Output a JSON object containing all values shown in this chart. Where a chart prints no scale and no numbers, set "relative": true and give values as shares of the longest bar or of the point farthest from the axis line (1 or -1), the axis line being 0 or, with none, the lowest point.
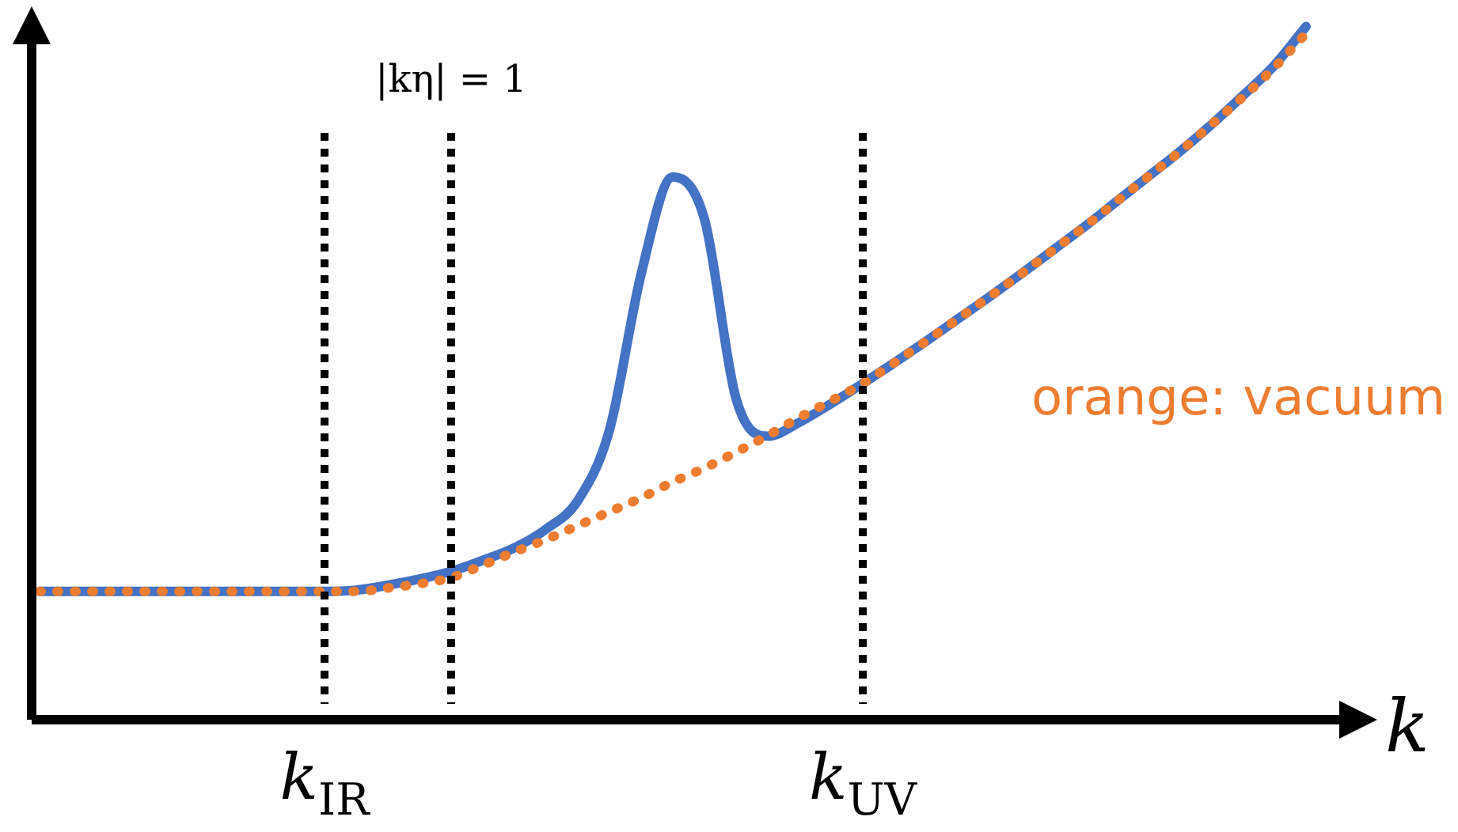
{
  "chart_data": {
    "type": "line",
    "relative": true,
    "xlabel": "k",
    "categories": [
      null,
      null,
      null,
      null,
      null,
      null,
      null,
      null,
      null,
      "k$_{IR}$",
      null,
      null,
      null,
      "|kη| = 1",
      null,
      null,
      null,
      null,
      null,
      null,
      null,
      null,
      null,
      null,
      null,
      null,
      "k$_{UV}$",
      null,
      null,
      null,
      null,
      null,
      null,
      null,
      null,
      null,
      null,
      null,
      null,
      null,
      null
    ],
    "series": [
      {
        "color": "#4472c4",
        "line_style": "solid",
        "values": [
          0.185,
          0.185,
          0.185,
          0.185,
          0.185,
          0.185,
          0.185,
          0.185,
          0.185,
          0.185,
          0.187,
          0.194,
          0.203,
          0.214,
          0.23,
          0.248,
          0.275,
          0.316,
          0.418,
          0.643,
          0.783,
          0.722,
          0.463,
          0.409,
          0.429,
          0.456,
          0.485,
          0.515,
          0.546,
          0.578,
          0.61,
          0.643,
          0.677,
          0.711,
          0.747,
          0.783,
          0.819,
          0.858,
          0.9,
          0.944,
          1
        ]
      },
      {
        "color": "#ed7d31",
        "line_style": "dotted",
        "values": [
          0.185,
          0.185,
          0.185,
          0.185,
          0.185,
          0.185,
          0.185,
          0.185,
          0.185,
          0.185,
          0.185,
          0.19,
          0.196,
          0.205,
          0.223,
          0.242,
          0.26,
          0.28,
          0.3,
          0.32,
          0.343,
          0.363,
          0.386,
          0.41,
          0.436,
          0.46,
          0.485,
          0.515,
          0.546,
          0.578,
          0.61,
          0.643,
          0.677,
          0.711,
          0.747,
          0.783,
          0.819,
          0.858,
          0.898,
          0.941,
          0.99
        ]
      }
    ],
    "ref_lines": [
      {
        "axis": "x",
        "value": "k$_{IR}$",
        "color": "#000000",
        "line_style": "dotted"
      },
      {
        "axis": "x",
        "value": "|kη| = 1",
        "color": "#000000",
        "line_style": "dotted"
      },
      {
        "axis": "x",
        "value": "k$_{UV}$",
        "color": "#000000",
        "line_style": "dotted"
      }
    ],
    "annotations": [
      "orange: vacuum"
    ],
    "legend": false,
    "marker": "none"
  }
}
